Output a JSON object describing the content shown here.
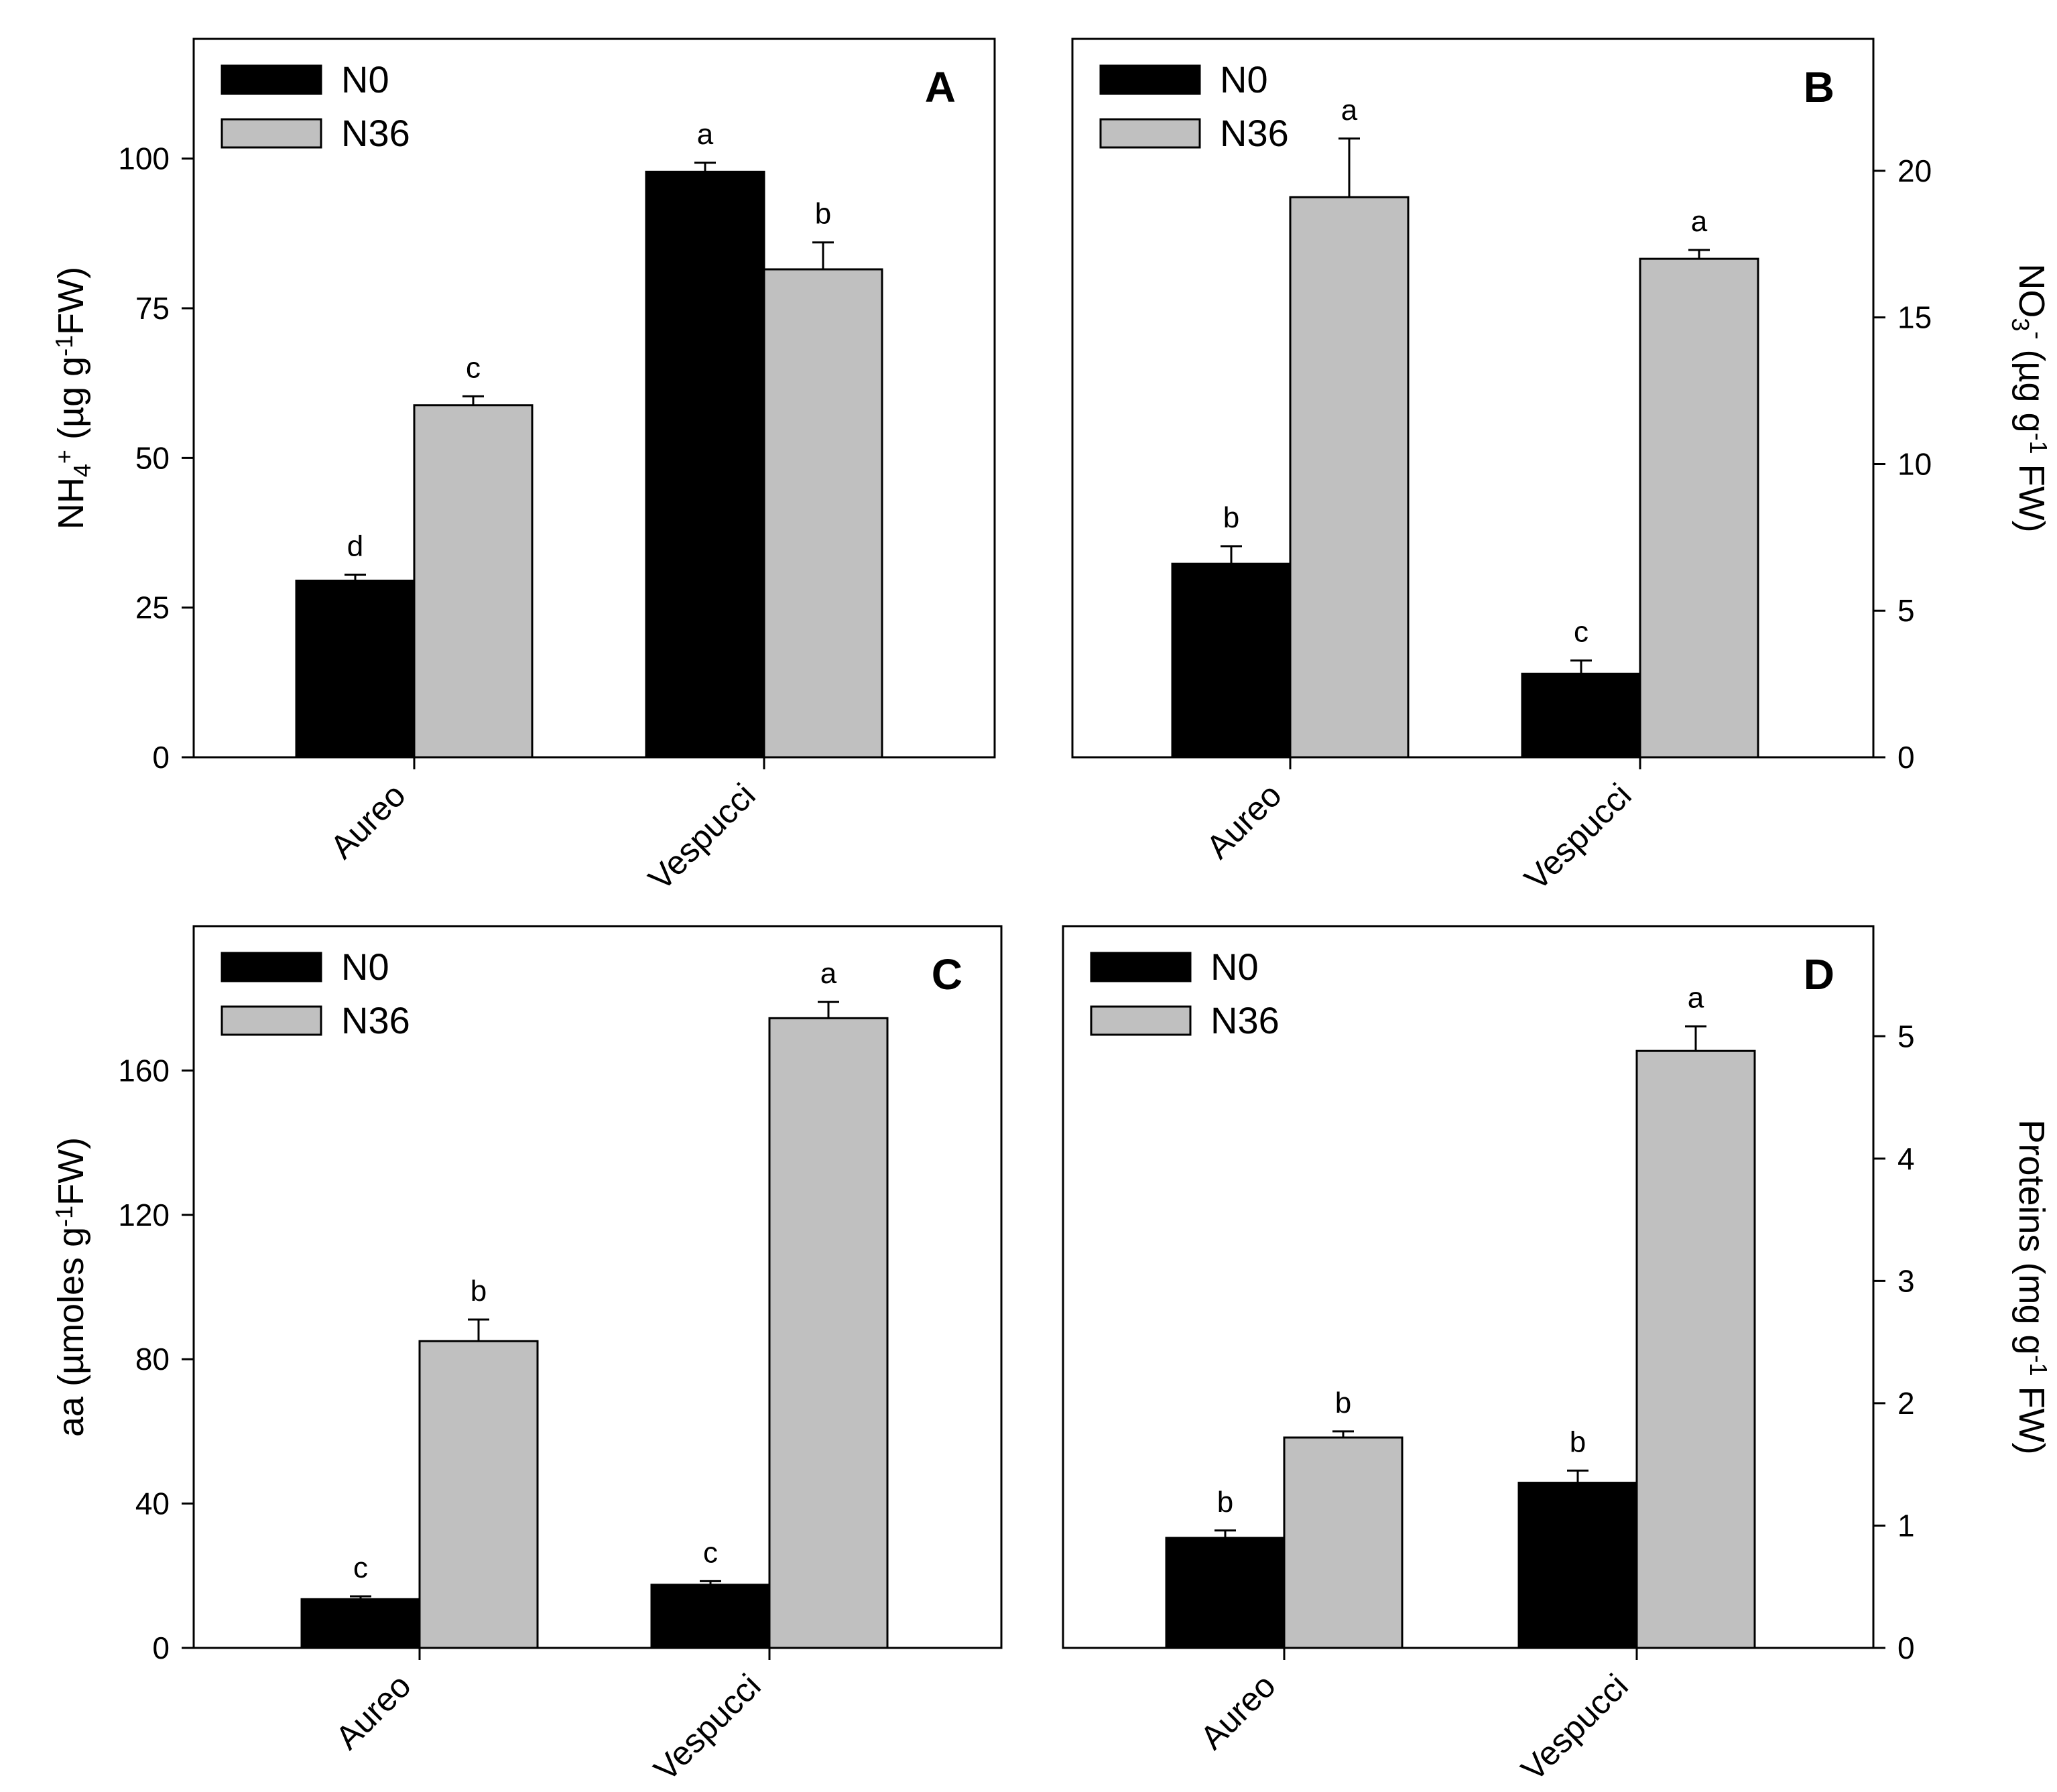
{
  "colors": {
    "N0": "#000000",
    "N36": "#c0c0c0",
    "axis": "#000000"
  },
  "chart_data": [
    {
      "type": "bar",
      "panel": "A",
      "categories": [
        "Aureo",
        "Vespucci"
      ],
      "series": [
        {
          "name": "N0",
          "values": [
            29.5,
            97.8
          ],
          "errors": [
            1.0,
            1.5
          ],
          "letters": [
            "d",
            "a"
          ]
        },
        {
          "name": "N36",
          "values": [
            58.8,
            81.5
          ],
          "errors": [
            1.5,
            4.5
          ],
          "letters": [
            "c",
            "b"
          ]
        }
      ],
      "ylabel": {
        "base": "NH",
        "sub": "4",
        "sup": "+",
        "unit_open": " (µg g",
        "unit_sup": "-1",
        "unit_close": "FW)"
      },
      "ylim": [
        0,
        120
      ],
      "yticks": [
        0,
        25,
        50,
        75,
        100
      ],
      "axis_side": "left",
      "legend": [
        "N0",
        "N36"
      ]
    },
    {
      "type": "bar",
      "panel": "B",
      "categories": [
        "Aureo",
        "Vespucci"
      ],
      "series": [
        {
          "name": "N0",
          "values": [
            6.6,
            2.85
          ],
          "errors": [
            0.6,
            0.45
          ],
          "letters": [
            "b",
            "c"
          ]
        },
        {
          "name": "N36",
          "values": [
            19.1,
            17.0
          ],
          "errors": [
            2.0,
            0.3
          ],
          "letters": [
            "a",
            "a"
          ]
        }
      ],
      "ylabel": {
        "base": "NO",
        "sub": "3",
        "sup": "-",
        "unit_open": " (µg g",
        "unit_sup": "-1",
        "unit_close": " FW)"
      },
      "ylim": [
        0,
        24.5
      ],
      "yticks": [
        0,
        5,
        10,
        15,
        20
      ],
      "axis_side": "right",
      "legend": [
        "N0",
        "N36"
      ]
    },
    {
      "type": "bar",
      "panel": "C",
      "categories": [
        "Aureo",
        "Vespucci"
      ],
      "series": [
        {
          "name": "N0",
          "values": [
            13.5,
            17.5
          ],
          "errors": [
            0.8,
            1.0
          ],
          "letters": [
            "c",
            "c"
          ]
        },
        {
          "name": "N36",
          "values": [
            85.0,
            174.5
          ],
          "errors": [
            6.0,
            4.5
          ],
          "letters": [
            "b",
            "a"
          ]
        }
      ],
      "ylabel": {
        "base": "aa",
        "sub": "",
        "sup": "",
        "unit_open": " (µmoles g",
        "unit_sup": "-1",
        "unit_close": "FW)"
      },
      "ylim": [
        0,
        200
      ],
      "yticks": [
        0,
        40,
        80,
        120,
        160
      ],
      "axis_side": "left",
      "legend": [
        "N0",
        "N36"
      ]
    },
    {
      "type": "bar",
      "panel": "D",
      "categories": [
        "Aureo",
        "Vespucci"
      ],
      "series": [
        {
          "name": "N0",
          "values": [
            0.9,
            1.35
          ],
          "errors": [
            0.06,
            0.1
          ],
          "letters": [
            "b",
            "b"
          ]
        },
        {
          "name": "N36",
          "values": [
            1.72,
            4.88
          ],
          "errors": [
            0.05,
            0.2
          ],
          "letters": [
            "b",
            "a"
          ]
        }
      ],
      "ylabel": {
        "base": "Proteins",
        "sub": "",
        "sup": "",
        "unit_open": " (mg g",
        "unit_sup": "-1",
        "unit_close": " FW)"
      },
      "ylim": [
        0,
        5.9
      ],
      "yticks": [
        0,
        1,
        2,
        3,
        4,
        5
      ],
      "axis_side": "right",
      "legend": [
        "N0",
        "N36"
      ]
    }
  ]
}
